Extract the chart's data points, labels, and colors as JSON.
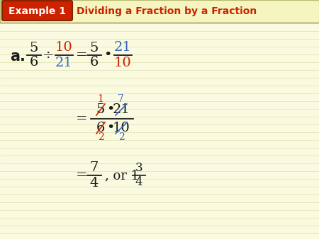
{
  "bg_color": "#fafae0",
  "header_bg_color": "#f5f5c0",
  "header_bar_color": "#cc2200",
  "header_text_color": "#ffffff",
  "header_label": "Example 1",
  "header_title": "Dividing a Fraction by a Fraction",
  "header_title_color": "#cc2200",
  "black": "#1a1a1a",
  "red": "#cc2200",
  "blue": "#3366bb",
  "figsize": [
    4.5,
    3.38
  ],
  "dpi": 100
}
